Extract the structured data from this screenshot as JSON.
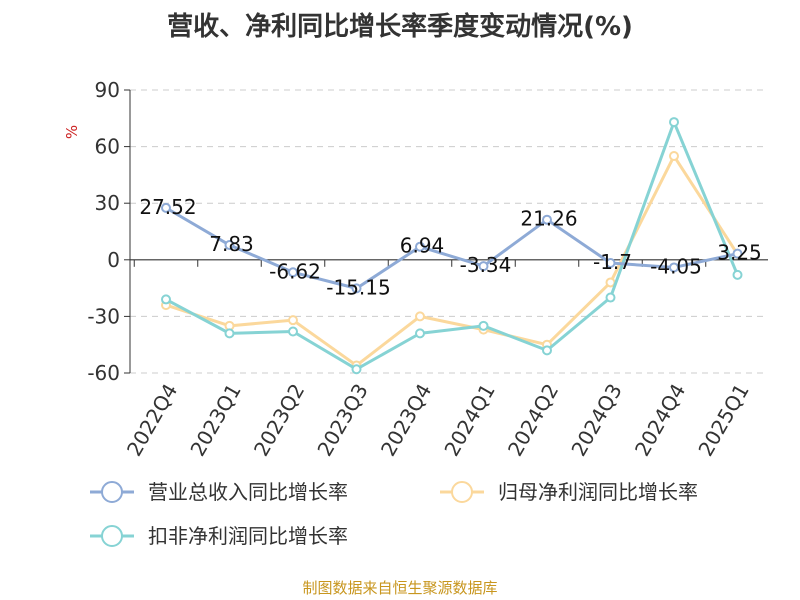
{
  "chart_data": {
    "type": "line",
    "title": "营收、净利同比增长率季度变动情况(%)",
    "ylabel": "%",
    "xlabel": "",
    "categories": [
      "2022Q4",
      "2023Q1",
      "2023Q2",
      "2023Q3",
      "2023Q4",
      "2024Q1",
      "2024Q2",
      "2024Q3",
      "2024Q4",
      "2025Q1"
    ],
    "ylim": [
      -60,
      90
    ],
    "yticks": [
      90,
      60,
      30,
      0,
      -30,
      -60
    ],
    "grid": true,
    "legend_position": "bottom",
    "series": [
      {
        "name": "营业总收入同比增长率",
        "color": "#8eaad6",
        "values": [
          27.52,
          7.83,
          -6.62,
          -15.15,
          6.94,
          -3.34,
          21.26,
          -1.7,
          -4.05,
          3.25
        ],
        "labels": [
          "27.52",
          "7.83",
          "-6.62",
          "-15.15",
          "6.94",
          "-3.34",
          "21.26",
          "-1.7",
          "-4.05",
          "3.25"
        ]
      },
      {
        "name": "归母净利润同比增长率",
        "color": "#fbd89c",
        "values": [
          -24,
          -35,
          -32,
          -56,
          -30,
          -37,
          -45,
          -12,
          55,
          3
        ]
      },
      {
        "name": "扣非净利润同比增长率",
        "color": "#86d3d4",
        "values": [
          -21,
          -39,
          -38,
          -58,
          -39,
          -35,
          -48,
          -20,
          73,
          -8
        ]
      }
    ]
  },
  "source": "制图数据来自恒生聚源数据库"
}
